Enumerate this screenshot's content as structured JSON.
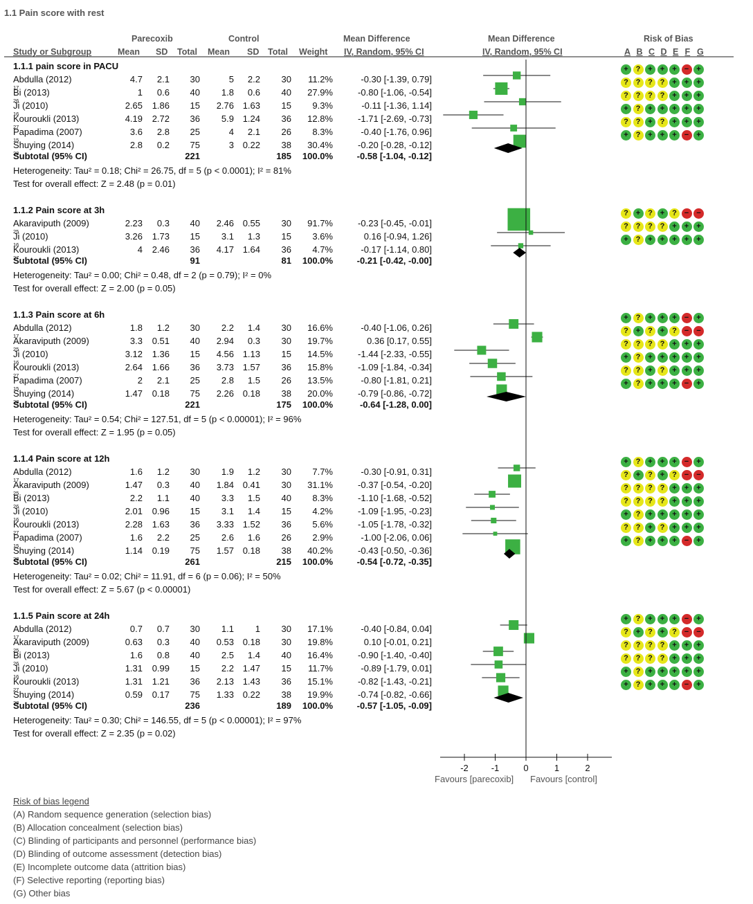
{
  "chart_data": {
    "type": "forest",
    "title": "1.1 Pain score with rest",
    "headers": {
      "group1": "Parecoxib",
      "group2": "Control",
      "md": "Mean Difference",
      "md_sub": "IV, Random, 95% CI",
      "plot": "Mean Difference",
      "plot_sub": "IV, Random, 95% CI",
      "rob": "Risk of Bias",
      "rob_letters": [
        "A",
        "B",
        "C",
        "D",
        "E",
        "F",
        "G"
      ],
      "study": "Study or Subgroup",
      "mean1": "Mean",
      "sd1": "SD",
      "total1": "Total",
      "mean2": "Mean",
      "sd2": "SD",
      "total2": "Total",
      "weight": "Weight"
    },
    "x_axis": {
      "ticks": [
        "-2",
        "-1",
        "0",
        "1",
        "2"
      ],
      "xlim": [
        -2.5,
        2.5
      ],
      "left_label": "Favours [parecoxib]",
      "right_label": "Favours [control]"
    },
    "subgroups": [
      {
        "title": "1.1.1 pain score in PACU",
        "studies": [
          {
            "name": "Abdulla (2012)",
            "ref": "17",
            "m1": "4.7",
            "sd1": "2.1",
            "n1": "30",
            "m2": "5",
            "sd2": "2.2",
            "n2": "30",
            "w": "11.2%",
            "ci": "-0.30 [-1.39, 0.79]",
            "md": -0.3,
            "lo": -1.39,
            "hi": 0.79,
            "wt": 11.2,
            "rob": "g?gggrg"
          },
          {
            "name": "Bi (2013)",
            "ref": "26",
            "m1": "1",
            "sd1": "0.6",
            "n1": "40",
            "m2": "1.8",
            "sd2": "0.6",
            "n2": "40",
            "w": "27.9%",
            "ci": "-0.80 [-1.06, -0.54]",
            "md": -0.8,
            "lo": -1.06,
            "hi": -0.54,
            "wt": 27.9,
            "rob": "????ggg"
          },
          {
            "name": "Ji (2010)",
            "ref": "16",
            "m1": "2.65",
            "sd1": "1.86",
            "n1": "15",
            "m2": "2.76",
            "sd2": "1.63",
            "n2": "15",
            "w": "9.3%",
            "ci": "-0.11 [-1.36, 1.14]",
            "md": -0.11,
            "lo": -1.36,
            "hi": 1.14,
            "wt": 9.3,
            "rob": "????ggg"
          },
          {
            "name": "Kouroukli (2013)",
            "ref": "27",
            "m1": "4.19",
            "sd1": "2.72",
            "n1": "36",
            "m2": "5.9",
            "sd2": "1.24",
            "n2": "36",
            "w": "12.8%",
            "ci": "-1.71 [-2.69, -0.73]",
            "md": -1.71,
            "lo": -2.69,
            "hi": -0.73,
            "wt": 12.8,
            "rob": "g?ggggg"
          },
          {
            "name": "Papadima (2007)",
            "ref": "15",
            "m1": "3.6",
            "sd1": "2.8",
            "n1": "25",
            "m2": "4",
            "sd2": "2.1",
            "n2": "26",
            "w": "8.3%",
            "ci": "-0.40 [-1.76, 0.96]",
            "md": -0.4,
            "lo": -1.76,
            "hi": 0.96,
            "wt": 8.3,
            "rob": "??g?ggg"
          },
          {
            "name": "Shuying (2014)",
            "ref": "28",
            "m1": "2.8",
            "sd1": "0.2",
            "n1": "75",
            "m2": "3",
            "sd2": "0.22",
            "n2": "38",
            "w": "30.4%",
            "ci": "-0.20 [-0.28, -0.12]",
            "md": -0.2,
            "lo": -0.28,
            "hi": -0.12,
            "wt": 30.4,
            "rob": "g?gggrg"
          }
        ],
        "subtotal": {
          "label": "Subtotal (95% CI)",
          "n1": "221",
          "n2": "185",
          "w": "100.0%",
          "ci": "-0.58 [-1.04, -0.12]",
          "md": -0.58,
          "lo": -1.04,
          "hi": -0.12
        },
        "heterogeneity": "Heterogeneity: Tau² = 0.18; Chi² = 26.75, df = 5 (p < 0.0001); I² = 81%",
        "overall": "Test for overall effect: Z = 2.48 (p = 0.01)"
      },
      {
        "title": "1.1.2 Pain score at 3h",
        "studies": [
          {
            "name": "Akaraviputh (2009)",
            "ref": "25",
            "m1": "2.23",
            "sd1": "0.3",
            "n1": "40",
            "m2": "2.46",
            "sd2": "0.55",
            "n2": "30",
            "w": "91.7%",
            "ci": "-0.23 [-0.45, -0.01]",
            "md": -0.23,
            "lo": -0.45,
            "hi": -0.01,
            "wt": 91.7,
            "rob": "?g?g?rr"
          },
          {
            "name": "Ji (2010)",
            "ref": "16",
            "m1": "3.26",
            "sd1": "1.73",
            "n1": "15",
            "m2": "3.1",
            "sd2": "1.3",
            "n2": "15",
            "w": "3.6%",
            "ci": "0.16 [-0.94, 1.26]",
            "md": 0.16,
            "lo": -0.94,
            "hi": 1.26,
            "wt": 3.6,
            "rob": "????ggg"
          },
          {
            "name": "Kouroukli (2013)",
            "ref": "27",
            "m1": "4",
            "sd1": "2.46",
            "n1": "36",
            "m2": "4.17",
            "sd2": "1.64",
            "n2": "36",
            "w": "4.7%",
            "ci": "-0.17 [-1.14, 0.80]",
            "md": -0.17,
            "lo": -1.14,
            "hi": 0.8,
            "wt": 4.7,
            "rob": "g?ggggg"
          }
        ],
        "subtotal": {
          "label": "Subtotal (95% CI)",
          "n1": "91",
          "n2": "81",
          "w": "100.0%",
          "ci": "-0.21 [-0.42, -0.00]",
          "md": -0.21,
          "lo": -0.42,
          "hi": 0.0
        },
        "heterogeneity": "Heterogeneity: Tau² = 0.00; Chi² = 0.48, df = 2 (p = 0.79); I² = 0%",
        "overall": "Test for overall effect: Z = 2.00 (p = 0.05)"
      },
      {
        "title": "1.1.3 Pain score at 6h",
        "studies": [
          {
            "name": "Abdulla (2012)",
            "ref": "17",
            "m1": "1.8",
            "sd1": "1.2",
            "n1": "30",
            "m2": "2.2",
            "sd2": "1.4",
            "n2": "30",
            "w": "16.6%",
            "ci": "-0.40 [-1.06, 0.26]",
            "md": -0.4,
            "lo": -1.06,
            "hi": 0.26,
            "wt": 16.6,
            "rob": "g?gggrg"
          },
          {
            "name": "Akaraviputh (2009)",
            "ref": "25",
            "m1": "3.3",
            "sd1": "0.51",
            "n1": "40",
            "m2": "2.94",
            "sd2": "0.3",
            "n2": "30",
            "w": "19.7%",
            "ci": "0.36 [0.17, 0.55]",
            "md": 0.36,
            "lo": 0.17,
            "hi": 0.55,
            "wt": 19.7,
            "rob": "?g?g?rr"
          },
          {
            "name": "Ji (2010)",
            "ref": "16",
            "m1": "3.12",
            "sd1": "1.36",
            "n1": "15",
            "m2": "4.56",
            "sd2": "1.13",
            "n2": "15",
            "w": "14.5%",
            "ci": "-1.44 [-2.33, -0.55]",
            "md": -1.44,
            "lo": -2.33,
            "hi": -0.55,
            "wt": 14.5,
            "rob": "????ggg"
          },
          {
            "name": "Kouroukli (2013)",
            "ref": "27",
            "m1": "2.64",
            "sd1": "1.66",
            "n1": "36",
            "m2": "3.73",
            "sd2": "1.57",
            "n2": "36",
            "w": "15.8%",
            "ci": "-1.09 [-1.84, -0.34]",
            "md": -1.09,
            "lo": -1.84,
            "hi": -0.34,
            "wt": 15.8,
            "rob": "g?ggggg"
          },
          {
            "name": "Papadima (2007)",
            "ref": "15",
            "m1": "2",
            "sd1": "2.1",
            "n1": "25",
            "m2": "2.8",
            "sd2": "1.5",
            "n2": "26",
            "w": "13.5%",
            "ci": "-0.80 [-1.81, 0.21]",
            "md": -0.8,
            "lo": -1.81,
            "hi": 0.21,
            "wt": 13.5,
            "rob": "??g?ggg"
          },
          {
            "name": "Shuying (2014)",
            "ref": "28",
            "m1": "1.47",
            "sd1": "0.18",
            "n1": "75",
            "m2": "2.26",
            "sd2": "0.18",
            "n2": "38",
            "w": "20.0%",
            "ci": "-0.79 [-0.86, -0.72]",
            "md": -0.79,
            "lo": -0.86,
            "hi": -0.72,
            "wt": 20.0,
            "rob": "g?gggrg"
          }
        ],
        "subtotal": {
          "label": "Subtotal (95% CI)",
          "n1": "221",
          "n2": "175",
          "w": "100.0%",
          "ci": "-0.64 [-1.28, 0.00]",
          "md": -0.64,
          "lo": -1.28,
          "hi": 0.0
        },
        "heterogeneity": "Heterogeneity: Tau² = 0.54; Chi² = 127.51, df = 5 (p < 0.00001); I² = 96%",
        "overall": "Test for overall effect: Z = 1.95 (p = 0.05)"
      },
      {
        "title": "1.1.4 Pain score at 12h",
        "studies": [
          {
            "name": "Abdulla (2012)",
            "ref": "17",
            "m1": "1.6",
            "sd1": "1.2",
            "n1": "30",
            "m2": "1.9",
            "sd2": "1.2",
            "n2": "30",
            "w": "7.7%",
            "ci": "-0.30 [-0.91, 0.31]",
            "md": -0.3,
            "lo": -0.91,
            "hi": 0.31,
            "wt": 7.7,
            "rob": "g?gggrg"
          },
          {
            "name": "Akaraviputh (2009)",
            "ref": "25",
            "m1": "1.47",
            "sd1": "0.3",
            "n1": "40",
            "m2": "1.84",
            "sd2": "0.41",
            "n2": "30",
            "w": "31.1%",
            "ci": "-0.37 [-0.54, -0.20]",
            "md": -0.37,
            "lo": -0.54,
            "hi": -0.2,
            "wt": 31.1,
            "rob": "?g?g?rr"
          },
          {
            "name": "Bi (2013)",
            "ref": "26",
            "m1": "2.2",
            "sd1": "1.1",
            "n1": "40",
            "m2": "3.3",
            "sd2": "1.5",
            "n2": "40",
            "w": "8.3%",
            "ci": "-1.10 [-1.68, -0.52]",
            "md": -1.1,
            "lo": -1.68,
            "hi": -0.52,
            "wt": 8.3,
            "rob": "????ggg"
          },
          {
            "name": "Ji (2010)",
            "ref": "16",
            "m1": "2.01",
            "sd1": "0.96",
            "n1": "15",
            "m2": "3.1",
            "sd2": "1.4",
            "n2": "15",
            "w": "4.2%",
            "ci": "-1.09 [-1.95, -0.23]",
            "md": -1.09,
            "lo": -1.95,
            "hi": -0.23,
            "wt": 4.2,
            "rob": "????ggg"
          },
          {
            "name": "Kouroukli (2013)",
            "ref": "27",
            "m1": "2.28",
            "sd1": "1.63",
            "n1": "36",
            "m2": "3.33",
            "sd2": "1.52",
            "n2": "36",
            "w": "5.6%",
            "ci": "-1.05 [-1.78, -0.32]",
            "md": -1.05,
            "lo": -1.78,
            "hi": -0.32,
            "wt": 5.6,
            "rob": "g?ggggg"
          },
          {
            "name": "Papadima (2007)",
            "ref": "15",
            "m1": "1.6",
            "sd1": "2.2",
            "n1": "25",
            "m2": "2.6",
            "sd2": "1.6",
            "n2": "26",
            "w": "2.9%",
            "ci": "-1.00 [-2.06, 0.06]",
            "md": -1.0,
            "lo": -2.06,
            "hi": 0.06,
            "wt": 2.9,
            "rob": "??g?ggg"
          },
          {
            "name": "Shuying (2014)",
            "ref": "28",
            "m1": "1.14",
            "sd1": "0.19",
            "n1": "75",
            "m2": "1.57",
            "sd2": "0.18",
            "n2": "38",
            "w": "40.2%",
            "ci": "-0.43 [-0.50, -0.36]",
            "md": -0.43,
            "lo": -0.5,
            "hi": -0.36,
            "wt": 40.2,
            "rob": "g?gggrg"
          }
        ],
        "subtotal": {
          "label": "Subtotal (95% CI)",
          "n1": "261",
          "n2": "215",
          "w": "100.0%",
          "ci": "-0.54 [-0.72, -0.35]",
          "md": -0.54,
          "lo": -0.72,
          "hi": -0.35
        },
        "heterogeneity": "Heterogeneity: Tau² = 0.02; Chi² = 11.91, df = 6 (p = 0.06); I² = 50%",
        "overall": "Test for overall effect: Z = 5.67 (p < 0.00001)"
      },
      {
        "title": "1.1.5 Pain score at 24h",
        "studies": [
          {
            "name": "Abdulla (2012)",
            "ref": "17",
            "m1": "0.7",
            "sd1": "0.7",
            "n1": "30",
            "m2": "1.1",
            "sd2": "1",
            "n2": "30",
            "w": "17.1%",
            "ci": "-0.40 [-0.84, 0.04]",
            "md": -0.4,
            "lo": -0.84,
            "hi": 0.04,
            "wt": 17.1,
            "rob": "g?gggrg"
          },
          {
            "name": "Akaraviputh (2009)",
            "ref": "25",
            "m1": "0.63",
            "sd1": "0.3",
            "n1": "40",
            "m2": "0.53",
            "sd2": "0.18",
            "n2": "30",
            "w": "19.8%",
            "ci": "0.10 [-0.01, 0.21]",
            "md": 0.1,
            "lo": -0.01,
            "hi": 0.21,
            "wt": 19.8,
            "rob": "?g?g?rr"
          },
          {
            "name": "Bi (2013)",
            "ref": "26",
            "m1": "1.6",
            "sd1": "0.8",
            "n1": "40",
            "m2": "2.5",
            "sd2": "1.4",
            "n2": "40",
            "w": "16.4%",
            "ci": "-0.90 [-1.40, -0.40]",
            "md": -0.9,
            "lo": -1.4,
            "hi": -0.4,
            "wt": 16.4,
            "rob": "????ggg"
          },
          {
            "name": "Ji (2010)",
            "ref": "16",
            "m1": "1.31",
            "sd1": "0.99",
            "n1": "15",
            "m2": "2.2",
            "sd2": "1.47",
            "n2": "15",
            "w": "11.7%",
            "ci": "-0.89 [-1.79, 0.01]",
            "md": -0.89,
            "lo": -1.79,
            "hi": 0.01,
            "wt": 11.7,
            "rob": "????ggg"
          },
          {
            "name": "Kouroukli (2013)",
            "ref": "27",
            "m1": "1.31",
            "sd1": "1.21",
            "n1": "36",
            "m2": "2.13",
            "sd2": "1.43",
            "n2": "36",
            "w": "15.1%",
            "ci": "-0.82 [-1.43, -0.21]",
            "md": -0.82,
            "lo": -1.43,
            "hi": -0.21,
            "wt": 15.1,
            "rob": "g?ggggg"
          },
          {
            "name": "Shuying (2014)",
            "ref": "28",
            "m1": "0.59",
            "sd1": "0.17",
            "n1": "75",
            "m2": "1.33",
            "sd2": "0.22",
            "n2": "38",
            "w": "19.9%",
            "ci": "-0.74 [-0.82, -0.66]",
            "md": -0.74,
            "lo": -0.82,
            "hi": -0.66,
            "wt": 19.9,
            "rob": "g?gggrg"
          }
        ],
        "subtotal": {
          "label": "Subtotal (95% CI)",
          "n1": "236",
          "n2": "189",
          "w": "100.0%",
          "ci": "-0.57 [-1.05, -0.09]",
          "md": -0.57,
          "lo": -1.05,
          "hi": -0.09
        },
        "heterogeneity": "Heterogeneity: Tau² = 0.30; Chi² = 146.55, df = 5 (p < 0.00001); I² = 97%",
        "overall": "Test for overall effect: Z = 2.35 (p = 0.02)"
      }
    ],
    "rob_symbols": {
      "g": "+",
      "?": "?",
      "r": "−"
    },
    "colors": {
      "low": "#3cb043",
      "unclear": "#e6e619",
      "high": "#d42a2a",
      "marker": "#3cb043",
      "text_grey": "#555555"
    }
  },
  "legend": {
    "title": "Risk of bias legend",
    "items": [
      "(A) Random sequence generation (selection bias)",
      "(B) Allocation concealment (selection bias)",
      "(C) Blinding of participants and personnel (performance bias)",
      "(D) Blinding of outcome assessment (detection bias)",
      "(E) Incomplete outcome data (attrition bias)",
      "(F) Selective reporting (reporting bias)",
      "(G) Other bias"
    ]
  }
}
